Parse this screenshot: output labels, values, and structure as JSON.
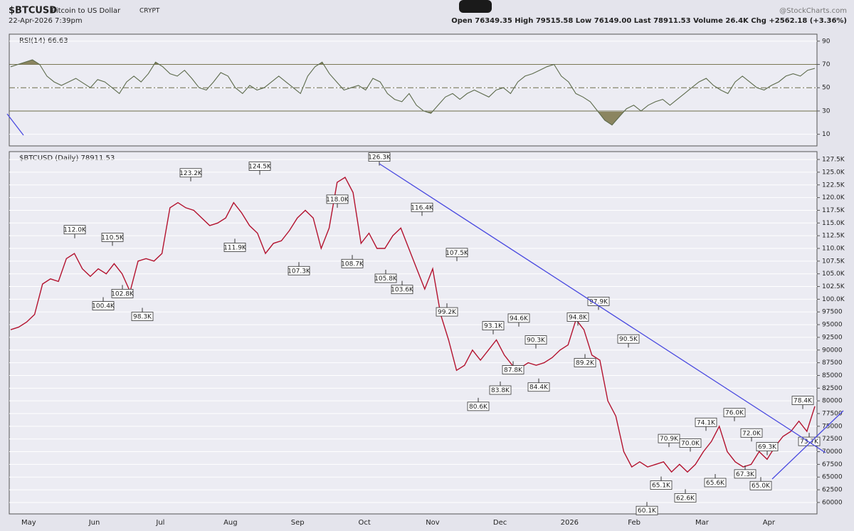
{
  "header": {
    "symbol": "$BTCUSD",
    "name": "Bitcoin to US Dollar",
    "exchange": "CRYPT",
    "date": "22-Apr-2026 7:39pm",
    "source": "@StockCharts.com",
    "quote": "Open 76349.35 High 79515.58 Low 76149.00 Last 78911.53 Volume 26.4K Chg +2562.18 (+3.36%)"
  },
  "chart_data": [
    {
      "type": "line",
      "title": "RSI(14) 66.63",
      "color": "#5d6b4c",
      "ylim": [
        0,
        96
      ],
      "yticks": [
        90,
        70,
        50,
        30,
        10
      ],
      "levels": [
        70,
        50,
        30
      ],
      "values": [
        68,
        70,
        72,
        74,
        70,
        60,
        55,
        52,
        55,
        58,
        54,
        50,
        57,
        55,
        50,
        45,
        55,
        60,
        55,
        62,
        72,
        68,
        62,
        60,
        65,
        58,
        50,
        48,
        55,
        63,
        60,
        50,
        45,
        52,
        48,
        50,
        55,
        60,
        55,
        50,
        45,
        60,
        68,
        72,
        62,
        55,
        48,
        50,
        52,
        48,
        58,
        55,
        45,
        40,
        38,
        45,
        35,
        30,
        28,
        35,
        42,
        45,
        40,
        45,
        48,
        45,
        42,
        48,
        50,
        45,
        55,
        60,
        62,
        65,
        68,
        70,
        60,
        55,
        45,
        42,
        38,
        30,
        22,
        18,
        25,
        32,
        35,
        30,
        35,
        38,
        40,
        35,
        40,
        45,
        50,
        55,
        58,
        52,
        48,
        45,
        55,
        60,
        55,
        50,
        48,
        52,
        55,
        60,
        62,
        60,
        65,
        66.63
      ]
    },
    {
      "type": "line",
      "title": "$BTCUSD (Daily) 78911.53",
      "color": "#b3122e",
      "ylim": [
        57750,
        129050
      ],
      "yticks": [
        {
          "value": 127500,
          "label": "127.5K"
        },
        {
          "value": 125000,
          "label": "125.0K"
        },
        {
          "value": 122500,
          "label": "122.5K"
        },
        {
          "value": 120000,
          "label": "120.0K"
        },
        {
          "value": 117500,
          "label": "117.5K"
        },
        {
          "value": 115000,
          "label": "115.0K"
        },
        {
          "value": 112500,
          "label": "112.5K"
        },
        {
          "value": 110000,
          "label": "110.0K"
        },
        {
          "value": 107500,
          "label": "107.5K"
        },
        {
          "value": 105000,
          "label": "105.0K"
        },
        {
          "value": 102500,
          "label": "102.5K"
        },
        {
          "value": 100000,
          "label": "100.0K"
        },
        97500,
        95000,
        92500,
        90000,
        87500,
        85000,
        82500,
        80000,
        77500,
        75000,
        72500,
        70000,
        67500,
        65000,
        62500,
        60000
      ],
      "x_labels": [
        "May",
        "Jun",
        "Jul",
        "Aug",
        "Sep",
        "Oct",
        "Nov",
        "Dec",
        "2026",
        "Feb",
        "Mar",
        "Apr"
      ],
      "values": [
        94000,
        94500,
        95500,
        97000,
        103000,
        104000,
        103500,
        108000,
        109000,
        106000,
        104500,
        106000,
        105000,
        107000,
        105000,
        101500,
        107500,
        108000,
        107500,
        109000,
        118000,
        119000,
        118000,
        117500,
        116000,
        114500,
        115000,
        116000,
        119000,
        117000,
        114500,
        113000,
        109000,
        111000,
        111500,
        113500,
        116000,
        117500,
        116000,
        110000,
        114000,
        123000,
        124000,
        121000,
        111000,
        113000,
        110000,
        110000,
        112500,
        114000,
        110000,
        106000,
        102000,
        106000,
        97000,
        92000,
        86000,
        87000,
        90000,
        88000,
        90000,
        92000,
        89000,
        87000,
        86500,
        87500,
        87000,
        87500,
        88500,
        90000,
        91000,
        96000,
        94000,
        89000,
        88000,
        80000,
        77000,
        70000,
        67000,
        68000,
        67000,
        67500,
        68000,
        66000,
        67500,
        66000,
        67500,
        70000,
        72000,
        75000,
        70000,
        68000,
        67000,
        67500,
        70000,
        68500,
        71000,
        73000,
        74000,
        76000,
        74000,
        78911.53
      ],
      "annotations": [
        {
          "label": "112.0K",
          "value": 112000
        },
        {
          "label": "110.5K",
          "value": 110500
        },
        {
          "label": "100.4K",
          "value": 100400
        },
        {
          "label": "102.8K",
          "value": 102800
        },
        {
          "label": "98.3K",
          "value": 98300
        },
        {
          "label": "123.2K",
          "value": 123200
        },
        {
          "label": "111.9K",
          "value": 111900
        },
        {
          "label": "124.5K",
          "value": 124500
        },
        {
          "label": "107.3K",
          "value": 107300
        },
        {
          "label": "118.0K",
          "value": 118000
        },
        {
          "label": "108.7K",
          "value": 108700
        },
        {
          "label": "126.3K",
          "value": 126300
        },
        {
          "label": "105.8K",
          "value": 105800
        },
        {
          "label": "103.6K",
          "value": 103600
        },
        {
          "label": "116.4K",
          "value": 116400
        },
        {
          "label": "99.2K",
          "value": 99200
        },
        {
          "label": "107.5K",
          "value": 107500
        },
        {
          "label": "80.6K",
          "value": 80600
        },
        {
          "label": "93.1K",
          "value": 93100
        },
        {
          "label": "83.8K",
          "value": 83800
        },
        {
          "label": "87.8K",
          "value": 87800
        },
        {
          "label": "94.6K",
          "value": 94600
        },
        {
          "label": "90.3K",
          "value": 90300
        },
        {
          "label": "84.4K",
          "value": 84400
        },
        {
          "label": "94.8K",
          "value": 94800
        },
        {
          "label": "89.2K",
          "value": 89200
        },
        {
          "label": "97.9K",
          "value": 97900
        },
        {
          "label": "90.5K",
          "value": 90500
        },
        {
          "label": "60.1K",
          "value": 60100
        },
        {
          "label": "65.1K",
          "value": 65100
        },
        {
          "label": "70.9K",
          "value": 70900
        },
        {
          "label": "62.6K",
          "value": 62600
        },
        {
          "label": "70.0K",
          "value": 70000
        },
        {
          "label": "74.1K",
          "value": 74100
        },
        {
          "label": "65.6K",
          "value": 65600
        },
        {
          "label": "76.0K",
          "value": 76000
        },
        {
          "label": "67.3K",
          "value": 67300
        },
        {
          "label": "72.0K",
          "value": 72000
        },
        {
          "label": "65.0K",
          "value": 65000
        },
        {
          "label": "69.3K",
          "value": 69300
        },
        {
          "label": "78.4K",
          "value": 78400
        },
        {
          "label": "73.7K",
          "value": 73700
        }
      ]
    }
  ]
}
